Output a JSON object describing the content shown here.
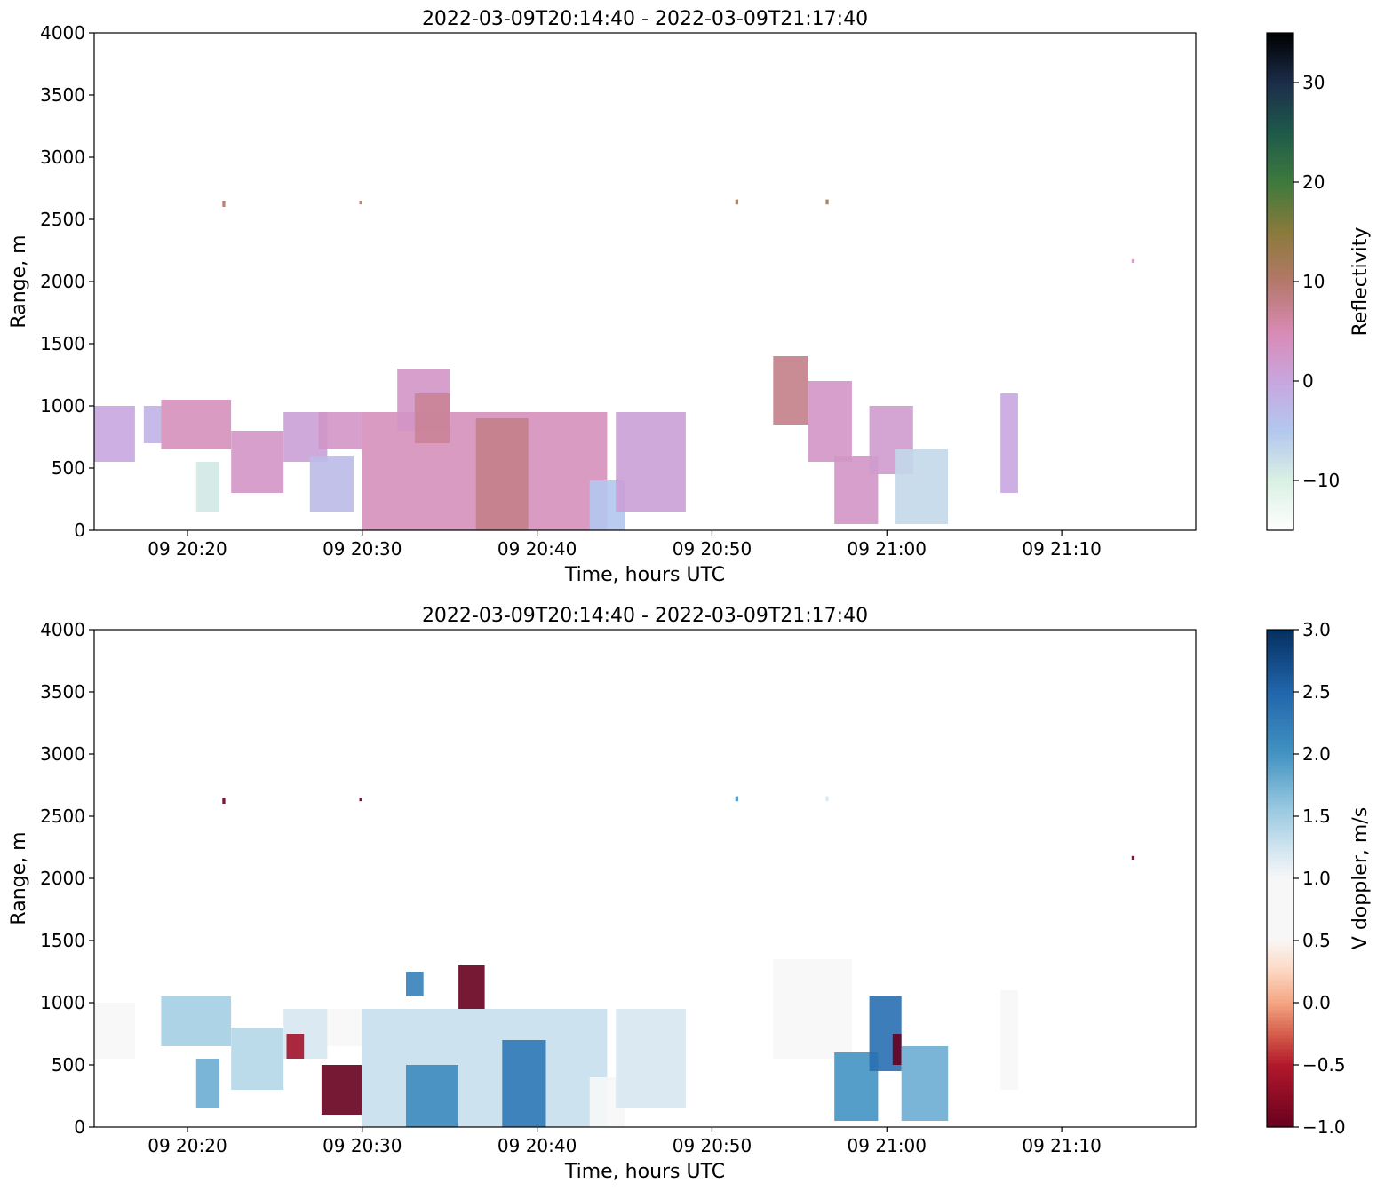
{
  "chart_data": [
    {
      "type": "heatmap",
      "title": "2022-03-09T20:14:40 - 2022-03-09T21:17:40",
      "xlabel": "Time, hours UTC",
      "ylabel": "Range, m",
      "x_range": [
        "2022-03-09T20:14:40",
        "2022-03-09T21:17:40"
      ],
      "xticks": [
        "09 20:20",
        "09 20:30",
        "09 20:40",
        "09 20:50",
        "09 21:00",
        "09 21:10"
      ],
      "xtick_times": [
        "2022-03-09T20:20:00",
        "2022-03-09T20:30:00",
        "2022-03-09T20:40:00",
        "2022-03-09T20:50:00",
        "2022-03-09T21:00:00",
        "2022-03-09T21:10:00"
      ],
      "ylim": [
        0,
        4000
      ],
      "yticks": [
        0,
        500,
        1000,
        1500,
        2000,
        2500,
        3000,
        3500,
        4000
      ],
      "colorbar": {
        "label": "Reflectivity",
        "range": [
          -15,
          35
        ],
        "ticks": [
          -10,
          0,
          10,
          20,
          30
        ],
        "tick_labels": [
          "−10",
          "0",
          "10",
          "20",
          "30"
        ],
        "colormap": "cubehelix_r"
      },
      "regions": [
        {
          "t0": "2022-03-09T20:14:40",
          "t1": "2022-03-09T20:17:00",
          "r0": 550,
          "r1": 1000,
          "value": 0
        },
        {
          "t0": "2022-03-09T20:17:30",
          "t1": "2022-03-09T20:18:30",
          "r0": 700,
          "r1": 1000,
          "value": -2
        },
        {
          "t0": "2022-03-09T20:18:30",
          "t1": "2022-03-09T20:22:30",
          "r0": 650,
          "r1": 1050,
          "value": 4
        },
        {
          "t0": "2022-03-09T20:20:30",
          "t1": "2022-03-09T20:21:50",
          "r0": 150,
          "r1": 550,
          "value": -9
        },
        {
          "t0": "2022-03-09T20:22:30",
          "t1": "2022-03-09T20:25:30",
          "r0": 300,
          "r1": 800,
          "value": 3
        },
        {
          "t0": "2022-03-09T20:25:30",
          "t1": "2022-03-09T20:28:00",
          "r0": 550,
          "r1": 950,
          "value": 1
        },
        {
          "t0": "2022-03-09T20:27:00",
          "t1": "2022-03-09T20:29:30",
          "r0": 150,
          "r1": 600,
          "value": -3
        },
        {
          "t0": "2022-03-09T20:27:30",
          "t1": "2022-03-09T20:30:00",
          "r0": 650,
          "r1": 950,
          "value": 3
        },
        {
          "t0": "2022-03-09T20:30:00",
          "t1": "2022-03-09T20:44:00",
          "r0": 0,
          "r1": 950,
          "value": 4
        },
        {
          "t0": "2022-03-09T20:32:00",
          "t1": "2022-03-09T20:35:00",
          "r0": 800,
          "r1": 1300,
          "value": 3
        },
        {
          "t0": "2022-03-09T20:36:30",
          "t1": "2022-03-09T20:39:30",
          "r0": 0,
          "r1": 900,
          "value": 8
        },
        {
          "t0": "2022-03-09T20:33:00",
          "t1": "2022-03-09T20:35:00",
          "r0": 700,
          "r1": 1100,
          "value": 7
        },
        {
          "t0": "2022-03-09T20:43:00",
          "t1": "2022-03-09T20:45:00",
          "r0": 0,
          "r1": 400,
          "value": -5
        },
        {
          "t0": "2022-03-09T20:44:30",
          "t1": "2022-03-09T20:48:30",
          "r0": 150,
          "r1": 950,
          "value": 1
        },
        {
          "t0": "2022-03-09T20:53:30",
          "t1": "2022-03-09T20:55:30",
          "r0": 850,
          "r1": 1400,
          "value": 8
        },
        {
          "t0": "2022-03-09T20:55:30",
          "t1": "2022-03-09T20:58:00",
          "r0": 550,
          "r1": 1200,
          "value": 3
        },
        {
          "t0": "2022-03-09T20:57:00",
          "t1": "2022-03-09T20:59:30",
          "r0": 50,
          "r1": 600,
          "value": 3
        },
        {
          "t0": "2022-03-09T20:59:00",
          "t1": "2022-03-09T21:01:30",
          "r0": 450,
          "r1": 1000,
          "value": 2
        },
        {
          "t0": "2022-03-09T21:00:30",
          "t1": "2022-03-09T21:03:30",
          "r0": 50,
          "r1": 650,
          "value": -7
        },
        {
          "t0": "2022-03-09T21:06:30",
          "t1": "2022-03-09T21:07:30",
          "r0": 300,
          "r1": 1100,
          "value": 0
        },
        {
          "t0": "2022-03-09T20:22:00",
          "t1": "2022-03-09T20:22:10",
          "r0": 2600,
          "r1": 2650,
          "value": 10
        },
        {
          "t0": "2022-03-09T20:29:50",
          "t1": "2022-03-09T20:30:00",
          "r0": 2620,
          "r1": 2650,
          "value": 10
        },
        {
          "t0": "2022-03-09T20:51:20",
          "t1": "2022-03-09T20:51:30",
          "r0": 2620,
          "r1": 2660,
          "value": 12
        },
        {
          "t0": "2022-03-09T20:56:30",
          "t1": "2022-03-09T20:56:40",
          "r0": 2620,
          "r1": 2660,
          "value": 12
        },
        {
          "t0": "2022-03-09T21:14:00",
          "t1": "2022-03-09T21:14:10",
          "r0": 2150,
          "r1": 2180,
          "value": 3
        }
      ]
    },
    {
      "type": "heatmap",
      "title": "2022-03-09T20:14:40 - 2022-03-09T21:17:40",
      "xlabel": "Time, hours UTC",
      "ylabel": "Range, m",
      "x_range": [
        "2022-03-09T20:14:40",
        "2022-03-09T21:17:40"
      ],
      "xticks": [
        "09 20:20",
        "09 20:30",
        "09 20:40",
        "09 20:50",
        "09 21:00",
        "09 21:10"
      ],
      "xtick_times": [
        "2022-03-09T20:20:00",
        "2022-03-09T20:30:00",
        "2022-03-09T20:40:00",
        "2022-03-09T20:50:00",
        "2022-03-09T21:00:00",
        "2022-03-09T21:10:00"
      ],
      "ylim": [
        0,
        4000
      ],
      "yticks": [
        0,
        500,
        1000,
        1500,
        2000,
        2500,
        3000,
        3500,
        4000
      ],
      "colorbar": {
        "label": "V doppler, m/s",
        "range": [
          -1.0,
          3.0
        ],
        "ticks": [
          -1.0,
          -0.5,
          0.0,
          0.5,
          1.0,
          1.5,
          2.0,
          2.5,
          3.0
        ],
        "tick_labels": [
          "−1.0",
          "−0.5",
          "0.0",
          "0.5",
          "1.0",
          "1.5",
          "2.0",
          "2.5",
          "3.0"
        ],
        "colormap": "RdBu"
      },
      "regions": [
        {
          "t0": "2022-03-09T20:14:40",
          "t1": "2022-03-09T20:17:00",
          "r0": 550,
          "r1": 1000,
          "value": 1.0
        },
        {
          "t0": "2022-03-09T20:18:30",
          "t1": "2022-03-09T20:22:30",
          "r0": 650,
          "r1": 1050,
          "value": 1.5
        },
        {
          "t0": "2022-03-09T20:20:30",
          "t1": "2022-03-09T20:21:50",
          "r0": 150,
          "r1": 550,
          "value": 1.8
        },
        {
          "t0": "2022-03-09T20:22:30",
          "t1": "2022-03-09T20:25:30",
          "r0": 300,
          "r1": 800,
          "value": 1.4
        },
        {
          "t0": "2022-03-09T20:25:30",
          "t1": "2022-03-09T20:28:00",
          "r0": 550,
          "r1": 950,
          "value": 1.2
        },
        {
          "t0": "2022-03-09T20:25:40",
          "t1": "2022-03-09T20:26:40",
          "r0": 550,
          "r1": 750,
          "value": -0.6
        },
        {
          "t0": "2022-03-09T20:27:40",
          "t1": "2022-03-09T20:30:00",
          "r0": 100,
          "r1": 500,
          "value": -1.0
        },
        {
          "t0": "2022-03-09T20:28:00",
          "t1": "2022-03-09T20:30:00",
          "r0": 650,
          "r1": 950,
          "value": 1.0
        },
        {
          "t0": "2022-03-09T20:30:00",
          "t1": "2022-03-09T20:44:00",
          "r0": 0,
          "r1": 950,
          "value": 1.3
        },
        {
          "t0": "2022-03-09T20:32:30",
          "t1": "2022-03-09T20:35:30",
          "r0": 0,
          "r1": 500,
          "value": 2.1
        },
        {
          "t0": "2022-03-09T20:38:00",
          "t1": "2022-03-09T20:40:30",
          "r0": 0,
          "r1": 700,
          "value": 2.3
        },
        {
          "t0": "2022-03-09T20:32:30",
          "t1": "2022-03-09T20:33:30",
          "r0": 1050,
          "r1": 1250,
          "value": 2.2
        },
        {
          "t0": "2022-03-09T20:35:30",
          "t1": "2022-03-09T20:37:00",
          "r0": 950,
          "r1": 1300,
          "value": -1.0
        },
        {
          "t0": "2022-03-09T20:43:00",
          "t1": "2022-03-09T20:45:00",
          "r0": 0,
          "r1": 400,
          "value": 0.8
        },
        {
          "t0": "2022-03-09T20:44:30",
          "t1": "2022-03-09T20:48:30",
          "r0": 150,
          "r1": 950,
          "value": 1.2
        },
        {
          "t0": "2022-03-09T20:53:30",
          "t1": "2022-03-09T20:58:00",
          "r0": 550,
          "r1": 1350,
          "value": 1.0
        },
        {
          "t0": "2022-03-09T20:57:00",
          "t1": "2022-03-09T20:59:30",
          "r0": 50,
          "r1": 600,
          "value": 2.0
        },
        {
          "t0": "2022-03-09T20:59:00",
          "t1": "2022-03-09T21:00:50",
          "r0": 450,
          "r1": 1050,
          "value": 2.4
        },
        {
          "t0": "2022-03-09T21:00:20",
          "t1": "2022-03-09T21:00:50",
          "r0": 500,
          "r1": 750,
          "value": -1.0
        },
        {
          "t0": "2022-03-09T21:00:50",
          "t1": "2022-03-09T21:03:30",
          "r0": 50,
          "r1": 650,
          "value": 1.8
        },
        {
          "t0": "2022-03-09T21:06:30",
          "t1": "2022-03-09T21:07:30",
          "r0": 300,
          "r1": 1100,
          "value": 1.0
        },
        {
          "t0": "2022-03-09T20:22:00",
          "t1": "2022-03-09T20:22:10",
          "r0": 2600,
          "r1": 2650,
          "value": -1.0
        },
        {
          "t0": "2022-03-09T20:29:50",
          "t1": "2022-03-09T20:30:00",
          "r0": 2620,
          "r1": 2650,
          "value": -1.0
        },
        {
          "t0": "2022-03-09T20:51:20",
          "t1": "2022-03-09T20:51:30",
          "r0": 2620,
          "r1": 2660,
          "value": 2.0
        },
        {
          "t0": "2022-03-09T20:56:30",
          "t1": "2022-03-09T20:56:40",
          "r0": 2620,
          "r1": 2660,
          "value": 1.2
        },
        {
          "t0": "2022-03-09T21:14:00",
          "t1": "2022-03-09T21:14:10",
          "r0": 2150,
          "r1": 2180,
          "value": -1.0
        }
      ]
    }
  ]
}
